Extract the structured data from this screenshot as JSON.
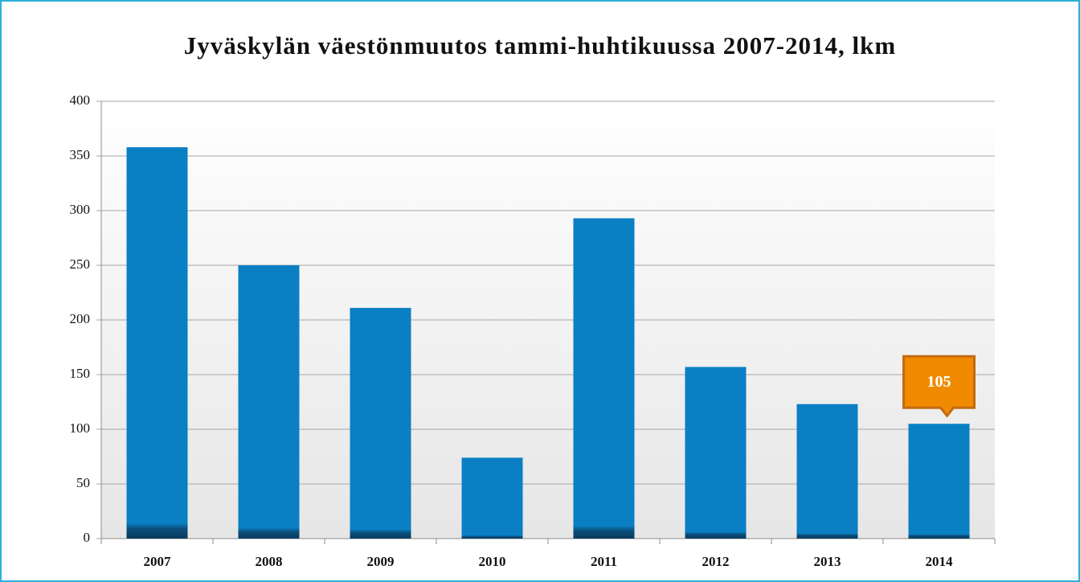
{
  "chart_data": {
    "type": "bar",
    "title": "Jyväskylän väestönmuutos tammi-huhtikuussa 2007-2014, lkm",
    "categories": [
      "2007",
      "2008",
      "2009",
      "2010",
      "2011",
      "2012",
      "2013",
      "2014"
    ],
    "values": [
      358,
      250,
      211,
      74,
      293,
      157,
      123,
      105
    ],
    "value_labels": [
      null,
      null,
      null,
      null,
      null,
      null,
      null,
      "105"
    ],
    "color": "#0a7fc4",
    "ylim": [
      0,
      400
    ],
    "yticks": [
      0,
      50,
      100,
      150,
      200,
      250,
      300,
      350,
      400
    ],
    "grid": true
  }
}
